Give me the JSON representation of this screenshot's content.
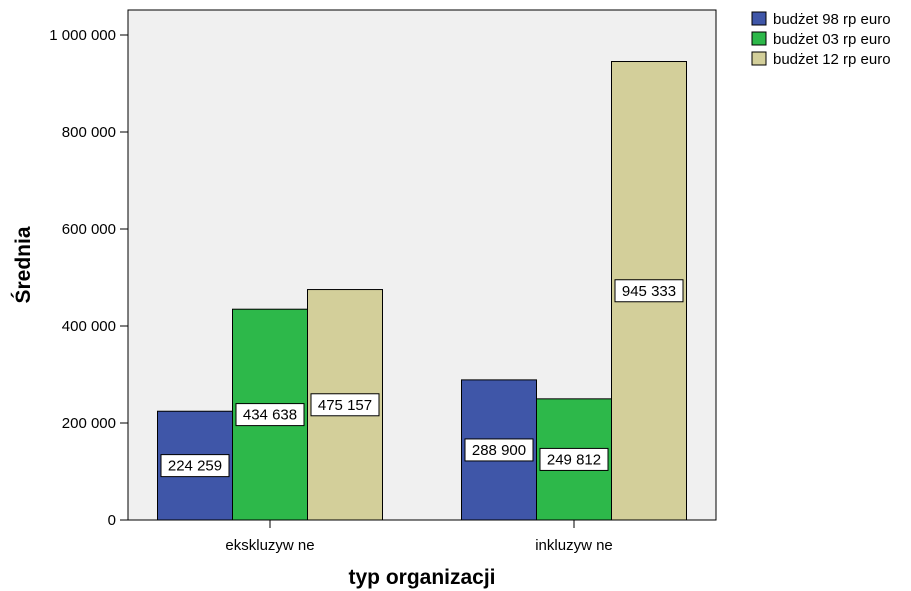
{
  "chart_data": {
    "type": "bar",
    "title": "",
    "xlabel": "typ organizacji",
    "ylabel": "Średnia",
    "categories": [
      "ekskluzyw ne",
      "inkluzyw ne"
    ],
    "series": [
      {
        "name": "budżet 98 rp euro",
        "values": [
          224259,
          288900
        ],
        "labels": [
          "224 259",
          "288 900"
        ],
        "color": "#3f56a8"
      },
      {
        "name": "budżet 03 rp euro",
        "values": [
          434638,
          249812
        ],
        "labels": [
          "434 638",
          "249 812"
        ],
        "color": "#2db84a"
      },
      {
        "name": "budżet 12 rp euro",
        "values": [
          475157,
          945333
        ],
        "labels": [
          "475 157",
          "945 333"
        ],
        "color": "#d3cf9a"
      }
    ],
    "ylim": [
      0,
      1000000
    ],
    "yticks": [
      0,
      200000,
      400000,
      600000,
      800000,
      1000000
    ],
    "ytick_labels": [
      "0",
      "200 000",
      "400 000",
      "600 000",
      "800 000",
      "1 000 000"
    ],
    "grid": false,
    "legend_position": "top-right",
    "plot_background": "#f0f0f0"
  }
}
